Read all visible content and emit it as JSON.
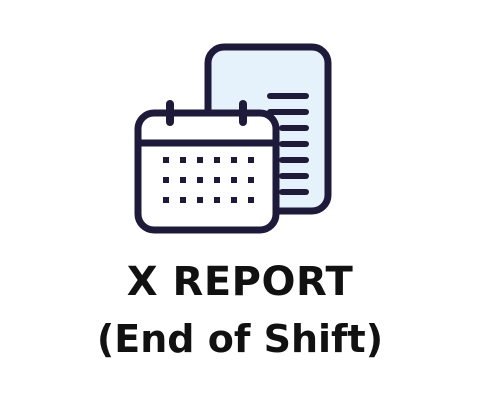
{
  "tile": {
    "title_line_1": "X REPORT",
    "title_line_2": "(End of Shift)",
    "icons": {
      "calendar": "calendar-icon",
      "document": "document-icon"
    },
    "colors": {
      "outline": "#1e1b3a",
      "fill": "#e6f2fb",
      "text": "#111111",
      "background": "#ffffff"
    }
  }
}
